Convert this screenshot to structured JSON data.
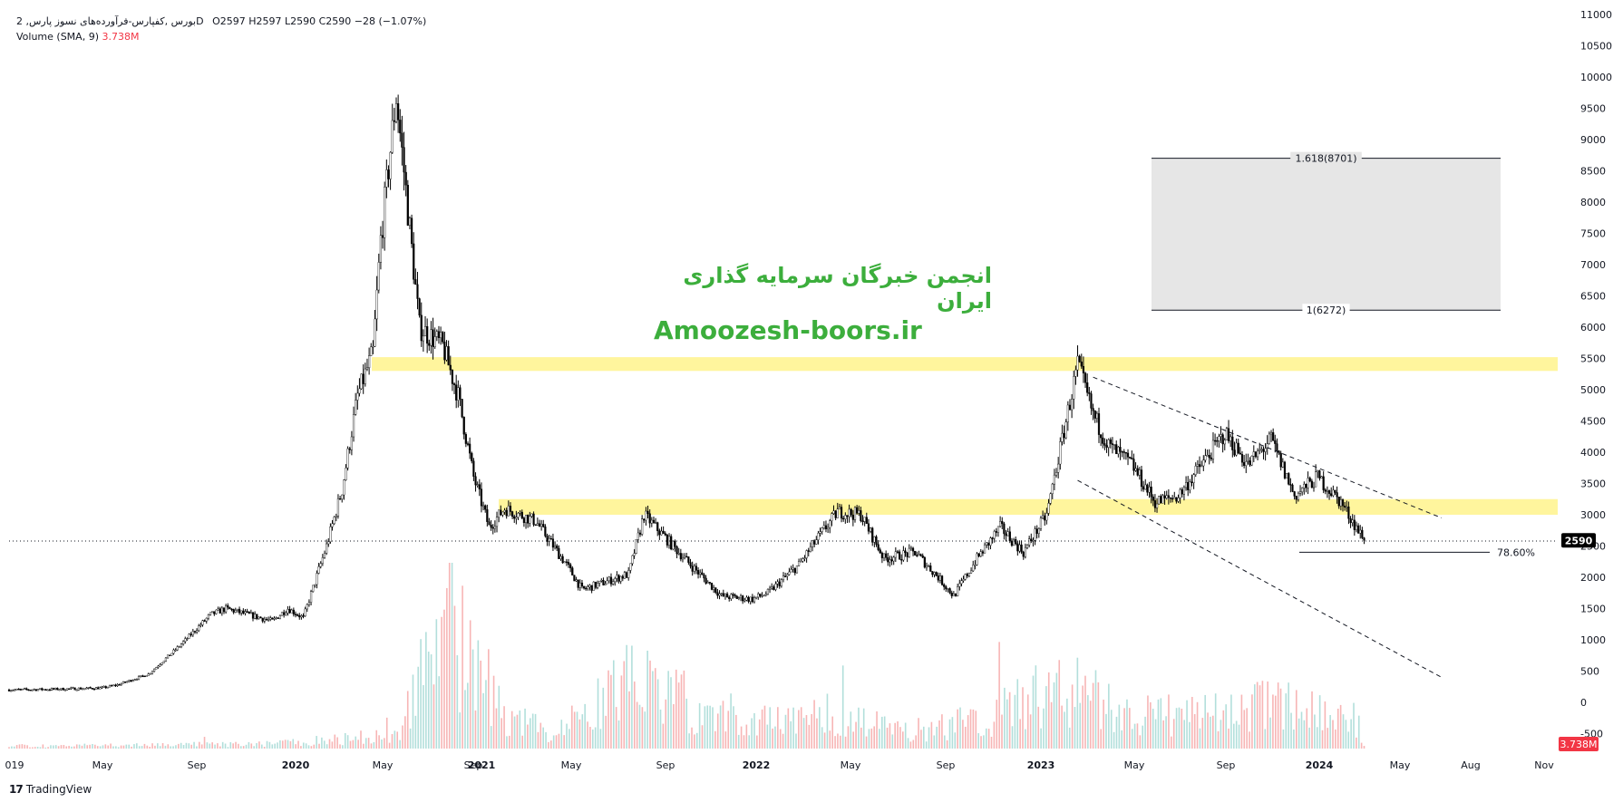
{
  "header": {
    "symbol_line": "2 ,بورس ,کفپارس-فرآورده‌های نسوز پارسD",
    "ohlc": "O2597  H2597  L2590  C2590  −28 (−1.07%)",
    "volume_label": "Volume (SMA, 9)",
    "volume_value": "3.738M"
  },
  "watermark": {
    "persian": "انجمن خبرگان سرمایه گذاری ایران",
    "site": "Amoozesh-boors.ir"
  },
  "footer": {
    "brand": "TradingView",
    "logo": "17"
  },
  "colors": {
    "candle": "#000000",
    "zone": "#fff59d",
    "target_box": "#e6e6e6",
    "volume_up": "#b2dfdb",
    "volume_down": "#f7b5b5",
    "watermark": "#3cae3c",
    "last_price_bg": "#000000",
    "volume_badge_bg": "#f23645"
  },
  "chart_data": {
    "type": "candlestick",
    "y_ticks": [
      "11000",
      "10500",
      "10000",
      "9500",
      "9000",
      "8500",
      "8000",
      "7500",
      "7000",
      "6500",
      "6000",
      "5500",
      "5000",
      "4500",
      "4000",
      "3500",
      "3000",
      "2500",
      "2000",
      "1500",
      "1000",
      "500",
      "0",
      "-500"
    ],
    "ylim": [
      -500,
      11000
    ],
    "x_ticks": [
      "019",
      "May",
      "Sep",
      "2020",
      "May",
      "Sep",
      "2021",
      "May",
      "Sep",
      "2022",
      "May",
      "Sep",
      "2023",
      "May",
      "Sep",
      "2024",
      "May",
      "Aug",
      "Nov"
    ],
    "last_price": {
      "value": 2590,
      "label": "2590"
    },
    "volume_badge": "3.738M",
    "fib_levels": [
      {
        "label": "1.618(8701)",
        "value": 8701
      },
      {
        "label": "1(6272)",
        "value": 6272
      },
      {
        "label": "78.60%",
        "value": 2400
      }
    ],
    "zones": [
      {
        "from": 5300,
        "to": 5520
      },
      {
        "from": 3000,
        "to": 3250
      }
    ],
    "price_path": [
      [
        0,
        200
      ],
      [
        0.03,
        210
      ],
      [
        0.06,
        230
      ],
      [
        0.07,
        280
      ],
      [
        0.09,
        450
      ],
      [
        0.11,
        900
      ],
      [
        0.13,
        1400
      ],
      [
        0.14,
        1500
      ],
      [
        0.17,
        1300
      ],
      [
        0.18,
        1500
      ],
      [
        0.19,
        1350
      ],
      [
        0.205,
        2500
      ],
      [
        0.215,
        3400
      ],
      [
        0.225,
        4900
      ],
      [
        0.235,
        5600
      ],
      [
        0.24,
        7400
      ],
      [
        0.25,
        9700
      ],
      [
        0.255,
        8500
      ],
      [
        0.265,
        6000
      ],
      [
        0.28,
        5700
      ],
      [
        0.29,
        4900
      ],
      [
        0.3,
        3600
      ],
      [
        0.31,
        2800
      ],
      [
        0.32,
        3100
      ],
      [
        0.34,
        2900
      ],
      [
        0.36,
        2200
      ],
      [
        0.37,
        1800
      ],
      [
        0.4,
        2050
      ],
      [
        0.41,
        3000
      ],
      [
        0.425,
        2600
      ],
      [
        0.44,
        2200
      ],
      [
        0.46,
        1700
      ],
      [
        0.48,
        1650
      ],
      [
        0.49,
        1750
      ],
      [
        0.51,
        2200
      ],
      [
        0.52,
        2550
      ],
      [
        0.535,
        3050
      ],
      [
        0.55,
        3000
      ],
      [
        0.565,
        2300
      ],
      [
        0.585,
        2400
      ],
      [
        0.6,
        2000
      ],
      [
        0.61,
        1700
      ],
      [
        0.625,
        2300
      ],
      [
        0.64,
        2800
      ],
      [
        0.655,
        2400
      ],
      [
        0.67,
        3000
      ],
      [
        0.68,
        4200
      ],
      [
        0.69,
        5400
      ],
      [
        0.7,
        4600
      ],
      [
        0.71,
        4100
      ],
      [
        0.725,
        3800
      ],
      [
        0.74,
        3200
      ],
      [
        0.755,
        3300
      ],
      [
        0.77,
        3800
      ],
      [
        0.785,
        4300
      ],
      [
        0.8,
        3800
      ],
      [
        0.815,
        4200
      ],
      [
        0.83,
        3300
      ],
      [
        0.845,
        3600
      ],
      [
        0.86,
        3200
      ],
      [
        0.87,
        2800
      ],
      [
        0.875,
        2590
      ]
    ],
    "volume_path": [
      [
        0.0,
        0.02
      ],
      [
        0.05,
        0.02
      ],
      [
        0.1,
        0.03
      ],
      [
        0.15,
        0.03
      ],
      [
        0.19,
        0.05
      ],
      [
        0.25,
        0.1
      ],
      [
        0.28,
        1.0
      ],
      [
        0.3,
        0.6
      ],
      [
        0.31,
        0.45
      ],
      [
        0.32,
        0.25
      ],
      [
        0.35,
        0.1
      ],
      [
        0.37,
        0.25
      ],
      [
        0.41,
        0.55
      ],
      [
        0.45,
        0.2
      ],
      [
        0.5,
        0.2
      ],
      [
        0.53,
        0.25
      ],
      [
        0.58,
        0.12
      ],
      [
        0.62,
        0.2
      ],
      [
        0.66,
        0.35
      ],
      [
        0.67,
        0.45
      ],
      [
        0.69,
        0.45
      ],
      [
        0.72,
        0.25
      ],
      [
        0.78,
        0.25
      ],
      [
        0.83,
        0.35
      ],
      [
        0.86,
        0.2
      ],
      [
        0.875,
        0.05
      ]
    ],
    "channel_lines": [
      [
        [
          0.7,
          5200
        ],
        [
          0.925,
          2950
        ]
      ],
      [
        [
          0.69,
          3550
        ],
        [
          0.925,
          400
        ]
      ]
    ]
  }
}
